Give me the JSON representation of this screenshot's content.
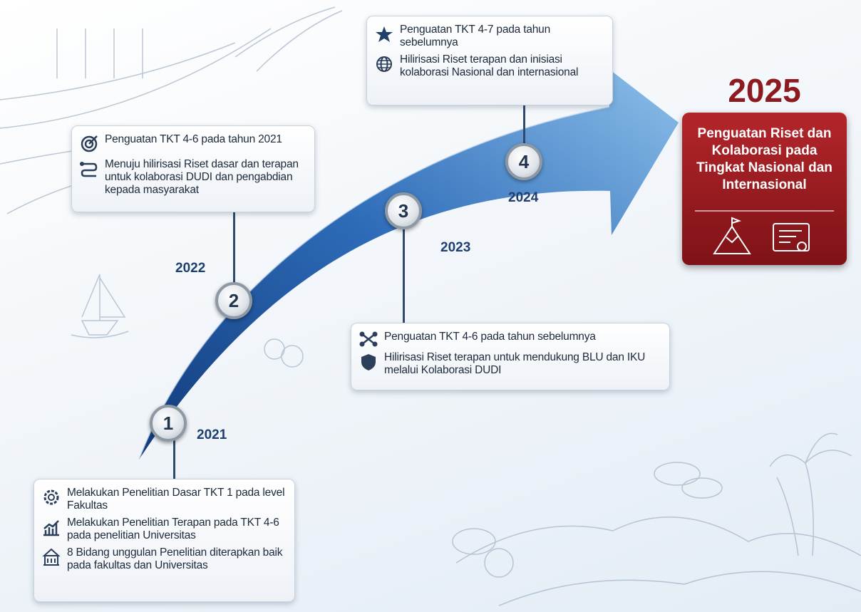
{
  "milestones": [
    {
      "number": "1",
      "year": "2021",
      "items": [
        "Melakukan Penelitian Dasar TKT 1 pada level Fakultas",
        "Melakukan Penelitian Terapan pada TKT 4-6 pada penelitian Universitas",
        "8 Bidang unggulan Penelitian diterapkan baik pada fakultas dan Universitas"
      ]
    },
    {
      "number": "2",
      "year": "2022",
      "items": [
        "Penguatan TKT 4-6 pada tahun 2021",
        "Menuju hilirisasi Riset dasar dan terapan untuk kolaborasi DUDI dan pengabdian kepada masyarakat"
      ]
    },
    {
      "number": "3",
      "year": "2023",
      "items": [
        "Penguatan TKT 4-6 pada tahun sebelumnya",
        "Hilirisasi Riset terapan untuk mendukung BLU dan IKU melalui Kolaborasi DUDI"
      ]
    },
    {
      "number": "4",
      "year": "2024",
      "items": [
        "Penguatan TKT 4-7 pada tahun sebelumnya",
        "Hilirisasi Riset terapan dan inisiasi kolaborasi Nasional dan internasional"
      ]
    }
  ],
  "goal": {
    "year": "2025",
    "title": "Penguatan Riset dan Kolaborasi pada Tingkat Nasional dan Internasional"
  }
}
